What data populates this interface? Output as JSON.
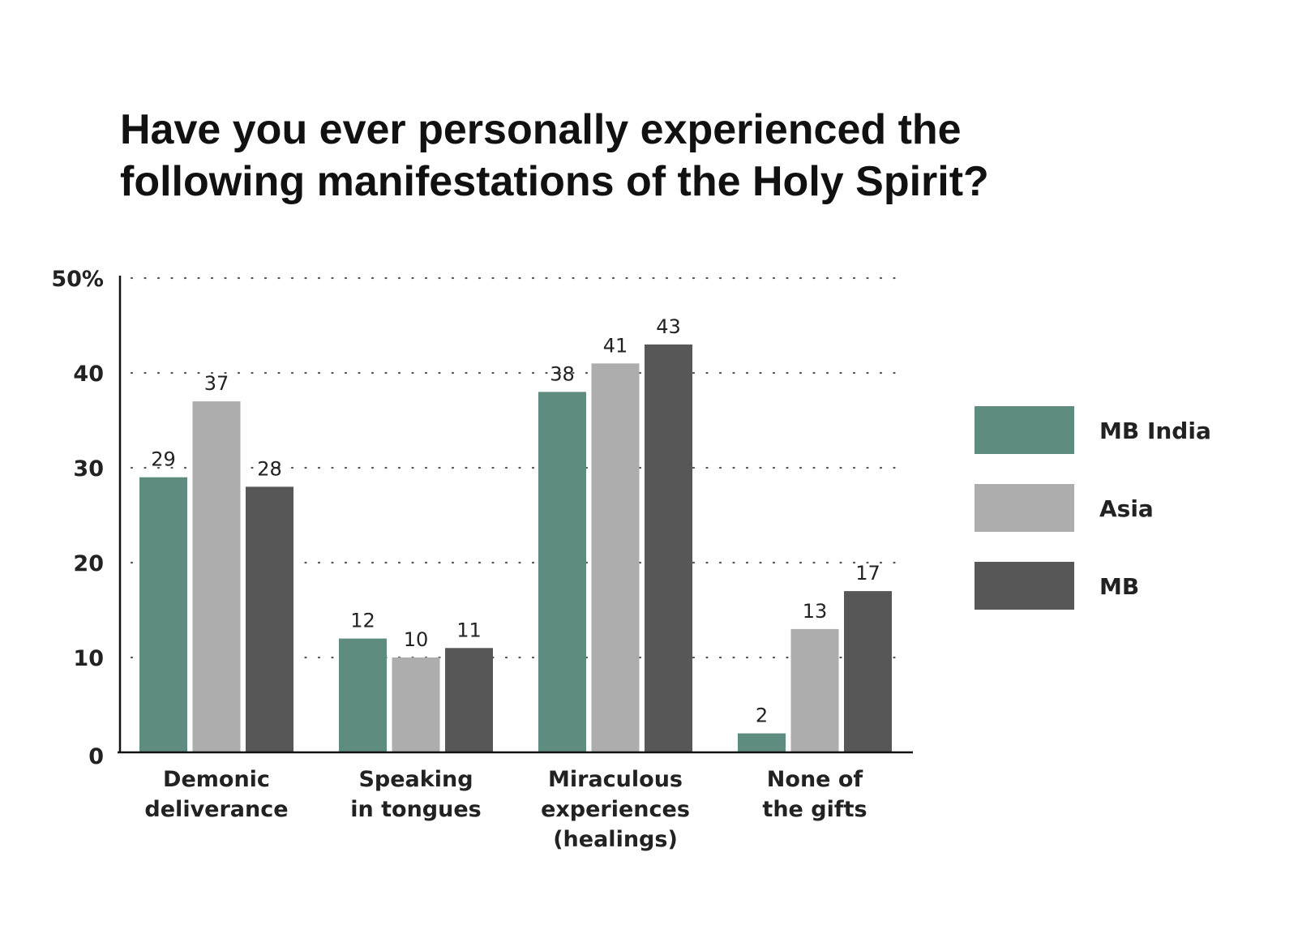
{
  "chart_data": {
    "type": "bar",
    "title_lines": [
      "Have you ever personally experienced the",
      "following manifestations of the Holy Spirit?"
    ],
    "categories": [
      [
        "Demonic",
        "deliverance"
      ],
      [
        "Speaking",
        "in tongues"
      ],
      [
        "Miraculous",
        "experiences",
        "(healings)"
      ],
      [
        "None of",
        "the gifts"
      ]
    ],
    "series": [
      {
        "name": "MB India",
        "color": "#5f8c80",
        "values": [
          29,
          12,
          38,
          2
        ]
      },
      {
        "name": "Asia",
        "color": "#adadad",
        "values": [
          37,
          10,
          41,
          13
        ]
      },
      {
        "name": "MB",
        "color": "#575757",
        "values": [
          28,
          11,
          43,
          17
        ]
      }
    ],
    "yticks": [
      "0",
      "10",
      "20",
      "30",
      "40",
      "50%"
    ],
    "ylim": [
      0,
      50
    ],
    "grid": "dotted horizontal",
    "legend_position": "right"
  }
}
